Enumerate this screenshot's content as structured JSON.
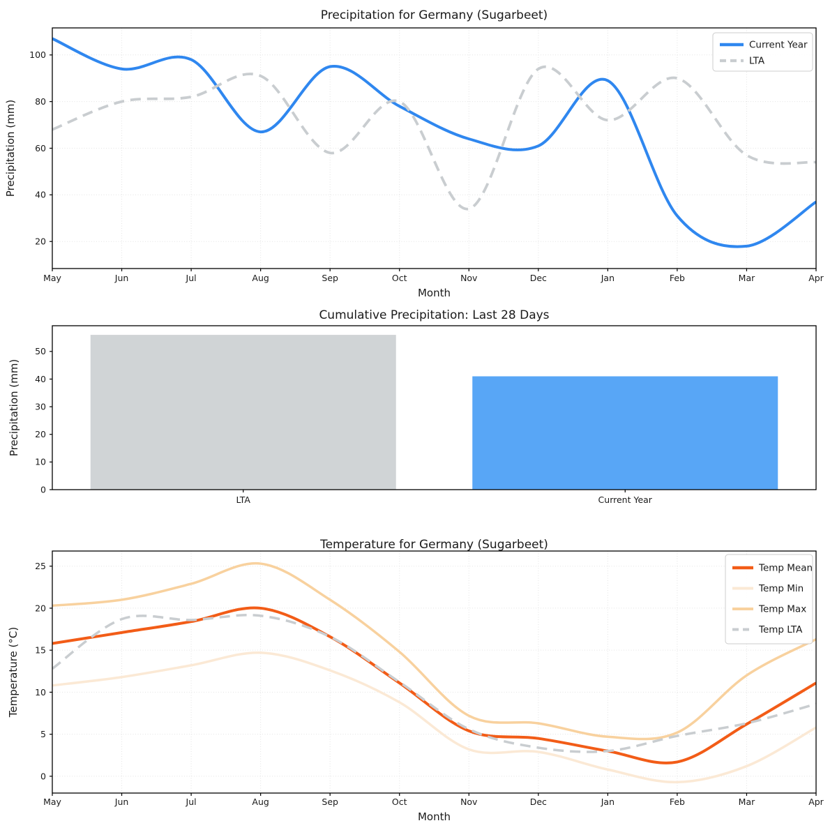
{
  "figure": {
    "background": "#ffffff",
    "text_color": "#1a1a1a",
    "grid_color": "#e3e3e3",
    "spine_color": "#000000"
  },
  "chart_data": [
    {
      "type": "line",
      "title": "Precipitation for Germany (Sugarbeet)",
      "xlabel": "Month",
      "ylabel": "Precipitation (mm)",
      "x": [
        "May",
        "Jun",
        "Jul",
        "Aug",
        "Sep",
        "Oct",
        "Nov",
        "Dec",
        "Jan",
        "Feb",
        "Mar",
        "Apr"
      ],
      "yticks": [
        20,
        40,
        60,
        80,
        100
      ],
      "ylim": [
        8.4,
        111.6
      ],
      "grid": true,
      "legend_position": "top-right",
      "series": [
        {
          "name": "Current Year",
          "color": "#2f87ef",
          "style": "solid",
          "width": 4,
          "values": [
            107,
            94,
            98,
            67,
            95,
            78,
            64,
            61,
            89,
            31,
            18,
            37
          ]
        },
        {
          "name": "LTA",
          "color": "#c9cdd0",
          "style": "dashed",
          "width": 3.8,
          "values": [
            68,
            80,
            82,
            91,
            58,
            80,
            34,
            94,
            72,
            90,
            57,
            54
          ]
        }
      ]
    },
    {
      "type": "bar",
      "title": "Cumulative Precipitation: Last 28 Days",
      "xlabel": "",
      "ylabel": "Precipitation (mm)",
      "categories": [
        "LTA",
        "Current Year"
      ],
      "values": [
        56,
        41
      ],
      "colors": [
        "#d0d4d6",
        "#58a6f6"
      ],
      "yticks": [
        0,
        10,
        20,
        30,
        40,
        50
      ],
      "ylim": [
        0,
        59.3
      ],
      "grid": false
    },
    {
      "type": "line",
      "title": "Temperature for Germany (Sugarbeet)",
      "xlabel": "Month",
      "ylabel": "Temperature (°C)",
      "x": [
        "May",
        "Jun",
        "Jul",
        "Aug",
        "Sep",
        "Oct",
        "Nov",
        "Dec",
        "Jan",
        "Feb",
        "Mar",
        "Apr"
      ],
      "yticks": [
        0,
        5,
        10,
        15,
        20,
        25
      ],
      "ylim": [
        -2.0,
        26.8
      ],
      "grid": true,
      "legend_position": "top-right",
      "series": [
        {
          "name": "Temp Mean",
          "color": "#f25c17",
          "style": "solid",
          "width": 4,
          "values": [
            15.8,
            17.1,
            18.4,
            20.0,
            16.6,
            11.1,
            5.4,
            4.5,
            3.0,
            1.7,
            6.2,
            11.1
          ]
        },
        {
          "name": "Temp Min",
          "color": "#fbe9d5",
          "style": "solid",
          "width": 3.5,
          "values": [
            10.8,
            11.8,
            13.2,
            14.7,
            12.6,
            8.8,
            3.2,
            2.9,
            0.8,
            -0.7,
            1.2,
            5.8
          ]
        },
        {
          "name": "Temp Max",
          "color": "#f8d19e",
          "style": "solid",
          "width": 3.5,
          "values": [
            20.3,
            21.0,
            22.9,
            25.3,
            21.0,
            14.8,
            7.2,
            6.3,
            4.7,
            5.2,
            12.0,
            16.3
          ]
        },
        {
          "name": "Temp LTA",
          "color": "#c9cdd0",
          "style": "dashed",
          "width": 3.5,
          "values": [
            12.8,
            18.7,
            18.6,
            19.1,
            16.6,
            11.2,
            5.6,
            3.4,
            3.0,
            4.8,
            6.3,
            8.6
          ]
        }
      ]
    }
  ]
}
